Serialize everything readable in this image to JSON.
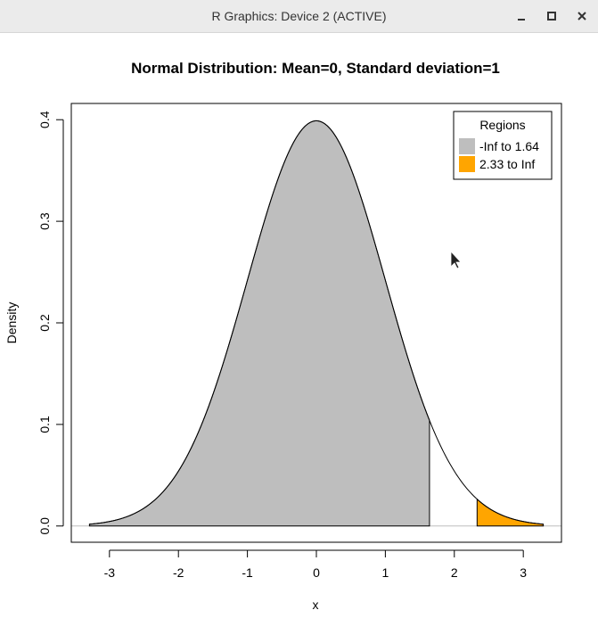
{
  "window": {
    "title": "R Graphics: Device 2 (ACTIVE)",
    "controls": [
      "minimize",
      "maximize",
      "close"
    ]
  },
  "chart_data": {
    "type": "area",
    "title": "Normal Distribution:  Mean=0, Standard deviation=1",
    "xlabel": "x",
    "ylabel": "Density",
    "mean": 0,
    "sd": 1,
    "xlim": [
      -3.29,
      3.29
    ],
    "ylim": [
      0,
      0.4
    ],
    "x_ticks": [
      -3,
      -2,
      -1,
      0,
      1,
      2,
      3
    ],
    "x_tick_labels": [
      "-3",
      "-2",
      "-1",
      "0",
      "1",
      "2",
      "3"
    ],
    "y_ticks": [
      0.0,
      0.1,
      0.2,
      0.3,
      0.4
    ],
    "y_tick_labels": [
      "0.0",
      "0.1",
      "0.2",
      "0.3",
      "0.4"
    ],
    "grid": false,
    "curve_color": "#000000",
    "baseline_color": "#bebebe",
    "regions": [
      {
        "name": "-Inf to 1.64",
        "from": -3.29,
        "to": 1.64,
        "color": "#bebebe"
      },
      {
        "name": "2.33 to Inf",
        "from": 2.33,
        "to": 3.29,
        "color": "#ffa500"
      }
    ],
    "legend": {
      "title": "Regions",
      "position": "top-right",
      "entries": [
        "-Inf to 1.64",
        "2.33 to Inf"
      ]
    }
  }
}
